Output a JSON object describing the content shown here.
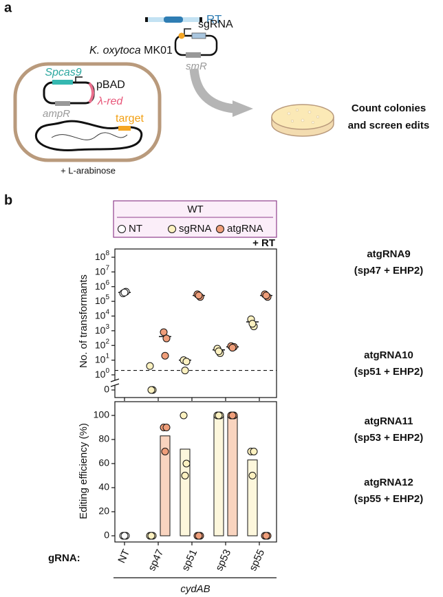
{
  "panel_a": {
    "label": "a",
    "rt": "RT",
    "sgrna": "sgRNA",
    "smr": "smR",
    "strain_species": "K. oxytoca",
    "strain_name": "MK01",
    "spcas9": "Spcas9",
    "pbad": "pBAD",
    "ampr": "ampR",
    "lambda_red": "λ-red",
    "target": "target",
    "inducer": "+ L-arabinose",
    "outcome": [
      "Count colonies",
      "and screen edits"
    ]
  },
  "panel_b": {
    "label": "b",
    "legend_title": "WT",
    "condition": "+ RT",
    "x_label": "gRNA:",
    "gene": "cydAB",
    "annotations": [
      {
        "name": "atgRNA9",
        "detail": "(sp47 + EHP2)"
      },
      {
        "name": "atgRNA10",
        "detail": "(sp51 + EHP2)"
      },
      {
        "name": "atgRNA11",
        "detail": "(sp53 + EHP2)"
      },
      {
        "name": "atgRNA12",
        "detail": "(sp55 + EHP2)"
      }
    ]
  },
  "chart_data": [
    {
      "type": "scatter",
      "y_label": "No. of transformants",
      "log_scale": true,
      "axis_break": true,
      "ylim": [
        1,
        100000000
      ],
      "yticks": [
        0,
        {
          "value": 1,
          "label": "10",
          "exponent": "0"
        },
        {
          "value": 10,
          "label": "10",
          "exponent": "1"
        },
        {
          "value": 100,
          "label": "10",
          "exponent": "2"
        },
        {
          "value": 1000,
          "label": "10",
          "exponent": "3"
        },
        {
          "value": 10000,
          "label": "10",
          "exponent": "4"
        },
        {
          "value": 100000,
          "label": "10",
          "exponent": "5"
        },
        {
          "value": 1000000,
          "label": "10",
          "exponent": "6"
        },
        {
          "value": 10000000,
          "label": "10",
          "exponent": "7"
        },
        {
          "value": 100000000,
          "label": "10",
          "exponent": "8"
        }
      ],
      "reference_line": 2,
      "series": [
        {
          "name": "NT",
          "color": "#ffffff",
          "values": [
            400000,
            null,
            null,
            null,
            null
          ],
          "points": [
            [
              350000,
              450000,
              400000
            ],
            null,
            null,
            null,
            null
          ]
        },
        {
          "name": "sgRNA",
          "color": "#fcf1c0",
          "values": [
            null,
            null,
            10,
            50,
            4000
          ],
          "points": [
            null,
            [
              4,
              0,
              0
            ],
            [
              10,
              8,
              2
            ],
            [
              60,
              30,
              40
            ],
            [
              6000,
              2000,
              3000
            ]
          ]
        },
        {
          "name": "atgRNA",
          "color": "#ef9e7a",
          "values": [
            null,
            400,
            250000,
            80,
            250000
          ],
          "points": [
            null,
            [
              800,
              300,
              20
            ],
            [
              300000,
              200000,
              250000
            ],
            [
              90,
              80,
              70
            ],
            [
              300000,
              200000,
              250000
            ]
          ]
        }
      ]
    },
    {
      "type": "bar",
      "y_label": "Editing efficiency (%)",
      "ylim": [
        0,
        100
      ],
      "yticks": [
        0,
        20,
        40,
        60,
        80,
        100
      ],
      "categories": [
        "NT",
        "sp47",
        "sp51",
        "sp53",
        "sp55"
      ],
      "series": [
        {
          "color": "#ffffff",
          "bar_color": "#ffffff",
          "values": [
            0,
            null,
            null,
            null,
            null
          ],
          "points": [
            [
              0,
              0,
              0
            ],
            null,
            null,
            null,
            null
          ]
        },
        {
          "color": "#fcf1c0",
          "bar_color": "#fdf7dc",
          "values": [
            null,
            0,
            72,
            100,
            63
          ],
          "points": [
            null,
            [
              0,
              0,
              0
            ],
            [
              100,
              60,
              50
            ],
            [
              100,
              100,
              100
            ],
            [
              70,
              70,
              50
            ]
          ]
        },
        {
          "color": "#ef9e7a",
          "bar_color": "#f9d4bf",
          "values": [
            null,
            83,
            0,
            100,
            0
          ],
          "points": [
            null,
            [
              90,
              90,
              70
            ],
            [
              0,
              0,
              0
            ],
            [
              100,
              100,
              100
            ],
            [
              0,
              0,
              0
            ]
          ]
        }
      ]
    }
  ]
}
